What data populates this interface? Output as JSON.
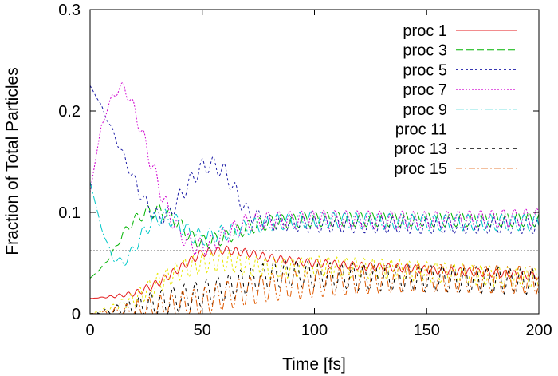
{
  "chart_data": {
    "type": "line",
    "xlabel": "Time [fs]",
    "ylabel": "Fraction of Total Particles",
    "xlim": [
      0,
      200
    ],
    "ylim": [
      0,
      0.3
    ],
    "x_ticks": [
      "0",
      "50",
      "100",
      "150",
      "200"
    ],
    "y_ticks": [
      "0",
      "0.1",
      "0.2",
      "0.3"
    ],
    "legend_position": "top-right",
    "reference_line": {
      "y": 0.0625,
      "color": "#aaaaaa",
      "style": "dotted"
    },
    "series": [
      {
        "name": "proc 1",
        "color": "#e41a1c",
        "dash": "",
        "x": [
          0,
          10,
          20,
          30,
          40,
          50,
          60,
          70,
          80,
          90,
          100,
          120,
          140,
          160,
          180,
          200
        ],
        "y": [
          0.015,
          0.017,
          0.02,
          0.03,
          0.045,
          0.06,
          0.063,
          0.06,
          0.055,
          0.052,
          0.05,
          0.047,
          0.045,
          0.042,
          0.04,
          0.037
        ],
        "osc_amp": 0.004,
        "osc_period": 4
      },
      {
        "name": "proc 3",
        "color": "#00b300",
        "dash": "9,4",
        "x": [
          0,
          5,
          10,
          15,
          20,
          25,
          30,
          35,
          40,
          45,
          50,
          60,
          70,
          80,
          100,
          150,
          200
        ],
        "y": [
          0.035,
          0.045,
          0.06,
          0.08,
          0.093,
          0.1,
          0.102,
          0.098,
          0.088,
          0.075,
          0.07,
          0.075,
          0.085,
          0.09,
          0.093,
          0.093,
          0.093
        ],
        "osc_amp": 0.007,
        "osc_period": 5
      },
      {
        "name": "proc 5",
        "color": "#1a1aa6",
        "dash": "3,3",
        "x": [
          0,
          5,
          10,
          15,
          20,
          25,
          30,
          35,
          40,
          45,
          50,
          55,
          60,
          65,
          70,
          80,
          100,
          150,
          200
        ],
        "y": [
          0.225,
          0.205,
          0.18,
          0.155,
          0.13,
          0.108,
          0.095,
          0.098,
          0.115,
          0.132,
          0.145,
          0.147,
          0.14,
          0.12,
          0.1,
          0.09,
          0.088,
          0.087,
          0.087
        ],
        "osc_amp": 0.008,
        "osc_period": 5
      },
      {
        "name": "proc 7",
        "color": "#d000d0",
        "dash": "2,2",
        "x": [
          0,
          5,
          10,
          15,
          20,
          25,
          30,
          35,
          40,
          45,
          50,
          55,
          60,
          70,
          80,
          100,
          150,
          200
        ],
        "y": [
          0.12,
          0.185,
          0.215,
          0.225,
          0.2,
          0.165,
          0.13,
          0.1,
          0.08,
          0.068,
          0.065,
          0.07,
          0.078,
          0.09,
          0.092,
          0.093,
          0.092,
          0.095
        ],
        "osc_amp": 0.009,
        "osc_period": 5
      },
      {
        "name": "proc 9",
        "color": "#00c8c8",
        "dash": "10,3,2,3",
        "x": [
          0,
          5,
          10,
          15,
          20,
          25,
          30,
          35,
          40,
          45,
          50,
          60,
          70,
          80,
          100,
          150,
          200
        ],
        "y": [
          0.13,
          0.085,
          0.055,
          0.05,
          0.065,
          0.085,
          0.095,
          0.095,
          0.088,
          0.078,
          0.075,
          0.08,
          0.085,
          0.09,
          0.093,
          0.09,
          0.09
        ],
        "osc_amp": 0.008,
        "osc_period": 5
      },
      {
        "name": "proc 11",
        "color": "#e8e800",
        "dash": "3,3",
        "x": [
          0,
          10,
          20,
          30,
          40,
          50,
          60,
          70,
          80,
          90,
          100,
          120,
          140,
          160,
          180,
          200
        ],
        "y": [
          0.0,
          0.006,
          0.015,
          0.03,
          0.043,
          0.05,
          0.052,
          0.047,
          0.045,
          0.045,
          0.047,
          0.045,
          0.043,
          0.04,
          0.037,
          0.035
        ],
        "osc_amp": 0.01,
        "osc_period": 4
      },
      {
        "name": "proc 13",
        "color": "#000000",
        "dash": "4,5",
        "x": [
          0,
          10,
          20,
          30,
          40,
          50,
          60,
          70,
          80,
          90,
          100,
          120,
          140,
          160,
          180,
          200
        ],
        "y": [
          0.0,
          0.003,
          0.006,
          0.01,
          0.015,
          0.02,
          0.025,
          0.032,
          0.038,
          0.04,
          0.038,
          0.036,
          0.035,
          0.034,
          0.033,
          0.032
        ],
        "osc_amp": 0.013,
        "osc_period": 5
      },
      {
        "name": "proc 15",
        "color": "#e05a00",
        "dash": "8,3,2,3",
        "x": [
          0,
          10,
          20,
          30,
          40,
          50,
          60,
          70,
          80,
          90,
          100,
          120,
          140,
          160,
          180,
          200
        ],
        "y": [
          0.0,
          0.001,
          0.002,
          0.004,
          0.008,
          0.012,
          0.018,
          0.022,
          0.026,
          0.028,
          0.03,
          0.033,
          0.035,
          0.035,
          0.034,
          0.033
        ],
        "osc_amp": 0.014,
        "osc_period": 5
      }
    ]
  }
}
